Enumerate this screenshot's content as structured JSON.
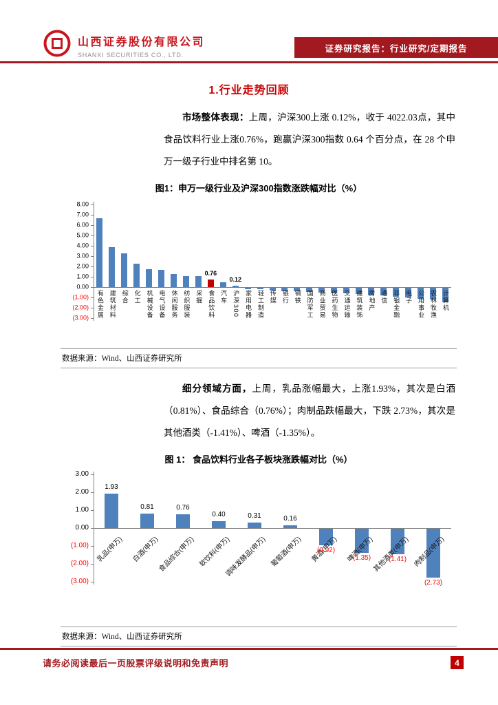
{
  "header": {
    "company_cn": "山西证券股份有限公司",
    "company_en": "SHANXI SECURITIES CO., LTD.",
    "banner": "证券研究报告：行业研究/定期报告"
  },
  "section_title": "1.行业走势回顾",
  "paragraphs": [
    {
      "lead": "市场整体表现：",
      "text": "上周，沪深300上涨 0.12%，收于 4022.03点，其中食品饮料行业上涨0.76%，跑赢沪深300指数 0.64 个百分点，在 28 个申万一级子行业中排名第 10。"
    },
    {
      "lead": "细分领域方面，",
      "text": "上周，乳品涨幅最大，上涨1.93%，其次是白酒（0.81%）、食品综合（0.76%）；肉制品跌幅最大，下跌 2.73%，其次是其他酒类（-1.41%）、啤酒（-1.35%）。"
    }
  ],
  "figures": [
    {
      "source": "数据来源：Wind、山西证券研究所"
    },
    {
      "source": "数据来源：Wind、山西证券研究所"
    }
  ],
  "footer": {
    "disclaimer": "请务必阅读最后一页股票评级说明和免责声明",
    "page_number": "4"
  },
  "colors": {
    "banner_red": "#A2191F",
    "logo_red": "#C8161E",
    "title_red": "#CC0000",
    "negative_red": "#FF0000",
    "page_box_red": "#C00000"
  },
  "chart_data": [
    {
      "type": "bar",
      "title": "图1：申万一级行业及沪深300指数涨跌幅对比（%）",
      "xlabel": "",
      "ylabel": "",
      "ylim": [
        -3,
        8
      ],
      "ytick_step": 1,
      "grid": false,
      "legend": "none",
      "bar_color": "#4F81BD",
      "highlight": {
        "category": "食品饮料",
        "color": "#C00000"
      },
      "show_labels_for": [
        "食品饮料",
        "沪深300"
      ],
      "categories": [
        "有色金属",
        "建筑材料",
        "综合",
        "化工",
        "机械设备",
        "电气设备",
        "休闲服务",
        "纺织服装",
        "采掘",
        "食品饮料",
        "汽车",
        "沪深300",
        "家用电器",
        "轻工制造",
        "传媒",
        "银行",
        "钢铁",
        "国防军工",
        "商业贸易",
        "医药生物",
        "交通运输",
        "建筑装饰",
        "房地产",
        "通信",
        "非银金融",
        "电子",
        "公用事业",
        "农林牧渔",
        "计算机"
      ],
      "values": [
        6.7,
        3.9,
        3.3,
        2.3,
        1.75,
        1.7,
        1.25,
        1.1,
        1.05,
        0.76,
        0.5,
        0.12,
        -0.1,
        -0.15,
        -0.25,
        -0.3,
        -0.35,
        -0.4,
        -0.45,
        -0.5,
        -0.55,
        -0.6,
        -0.7,
        -0.75,
        -0.85,
        -0.95,
        -1.05,
        -1.15,
        -1.4
      ]
    },
    {
      "type": "bar",
      "title": "图 1：  食品饮料行业各子板块涨跌幅对比（%）",
      "xlabel": "",
      "ylabel": "",
      "ylim": [
        -3,
        3
      ],
      "ytick_step": 1,
      "grid": false,
      "legend": "none",
      "bar_color": "#4F81BD",
      "data_labels": true,
      "categories": [
        "乳品(申万)",
        "白酒(申万)",
        "食品综合(申万)",
        "软饮料(申万)",
        "调味发酵品(申万)",
        "葡萄酒(申万)",
        "黄酒(申万)",
        "啤酒(申万)",
        "其他酒类(申万)",
        "肉制品(申万)"
      ],
      "values": [
        1.93,
        0.81,
        0.76,
        0.4,
        0.31,
        0.16,
        -0.92,
        -1.35,
        -1.41,
        -2.73
      ]
    }
  ]
}
